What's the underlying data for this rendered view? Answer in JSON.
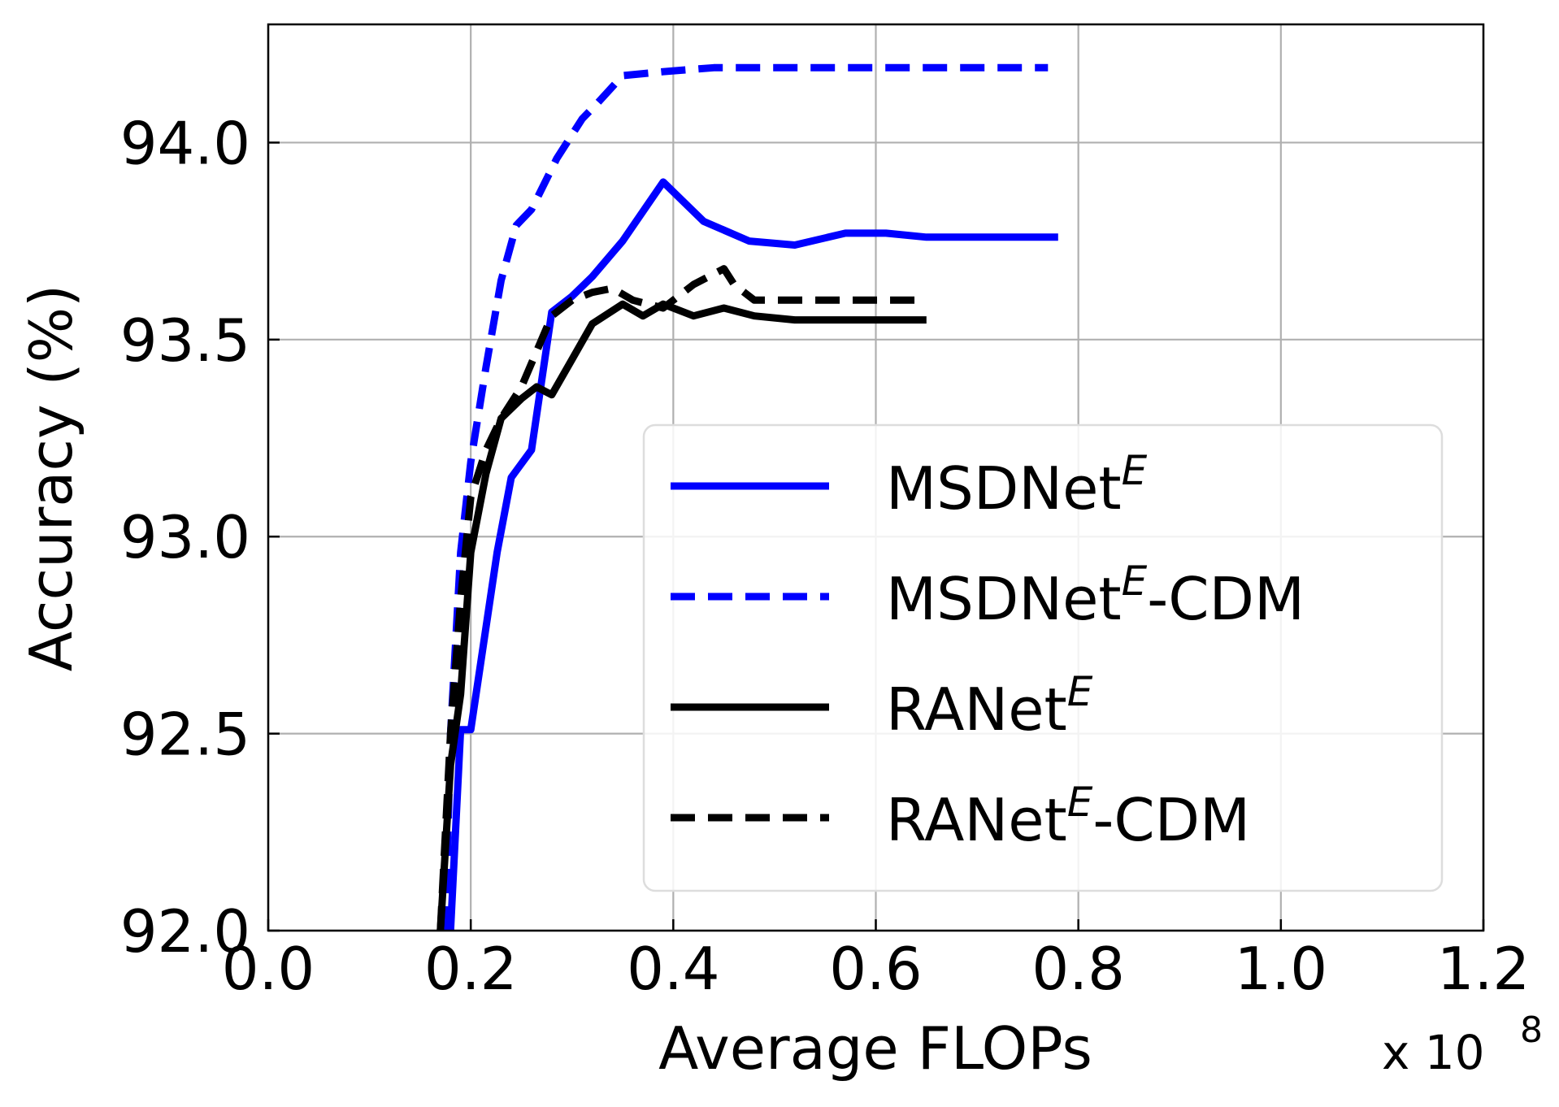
{
  "chart_data": {
    "type": "line",
    "title": "",
    "xlabel": "Average FLOPs",
    "ylabel": "Accuracy (%)",
    "x_multiplier_text": "x 10",
    "x_multiplier_exponent": "8",
    "xlim": [
      0.0,
      1.2
    ],
    "ylim": [
      92.0,
      94.3
    ],
    "xticks": [
      "0.0",
      "0.2",
      "0.4",
      "0.6",
      "0.8",
      "1.0",
      "1.2"
    ],
    "yticks": [
      "92.0",
      "92.5",
      "93.0",
      "93.5",
      "94.0"
    ],
    "grid": true,
    "legend_position": "lower-right",
    "series": [
      {
        "name": "MSDNet",
        "name_sup": "E",
        "name_suffix": "",
        "color": "#0000ff",
        "dash": "solid",
        "x": [
          0.18,
          0.19,
          0.2,
          0.226,
          0.24,
          0.26,
          0.28,
          0.3,
          0.32,
          0.35,
          0.39,
          0.43,
          0.475,
          0.52,
          0.57,
          0.61,
          0.65,
          0.7,
          0.78
        ],
        "y": [
          92.0,
          92.51,
          92.51,
          92.96,
          93.15,
          93.22,
          93.57,
          93.61,
          93.66,
          93.75,
          93.9,
          93.8,
          93.75,
          93.74,
          93.77,
          93.77,
          93.76,
          93.76,
          93.76
        ]
      },
      {
        "name": "MSDNet",
        "name_sup": "E",
        "name_suffix": "-CDM",
        "color": "#0000ff",
        "dash": "dashed",
        "x": [
          0.175,
          0.18,
          0.19,
          0.2,
          0.215,
          0.23,
          0.245,
          0.26,
          0.285,
          0.31,
          0.325,
          0.35,
          0.39,
          0.44,
          0.52,
          0.6,
          0.7,
          0.77
        ],
        "y": [
          92.0,
          92.5,
          92.96,
          93.19,
          93.43,
          93.65,
          93.79,
          93.83,
          93.96,
          94.06,
          94.1,
          94.17,
          94.18,
          94.19,
          94.19,
          94.19,
          94.19,
          94.19
        ]
      },
      {
        "name": "RANet",
        "name_sup": "E",
        "name_suffix": "",
        "color": "#000000",
        "dash": "solid",
        "x": [
          0.17,
          0.18,
          0.19,
          0.2,
          0.215,
          0.23,
          0.25,
          0.265,
          0.28,
          0.3,
          0.32,
          0.35,
          0.37,
          0.39,
          0.42,
          0.45,
          0.48,
          0.52,
          0.57,
          0.6,
          0.65
        ],
        "y": [
          92.0,
          92.42,
          92.6,
          92.96,
          93.16,
          93.3,
          93.35,
          93.38,
          93.36,
          93.45,
          93.54,
          93.59,
          93.56,
          93.59,
          93.56,
          93.58,
          93.56,
          93.55,
          93.55,
          93.55,
          93.55
        ]
      },
      {
        "name": "RANet",
        "name_sup": "E",
        "name_suffix": "-CDM",
        "color": "#000000",
        "dash": "dashed",
        "x": [
          0.17,
          0.18,
          0.19,
          0.2,
          0.215,
          0.23,
          0.25,
          0.265,
          0.28,
          0.3,
          0.32,
          0.34,
          0.36,
          0.39,
          0.42,
          0.45,
          0.46,
          0.48,
          0.52,
          0.56,
          0.6,
          0.64
        ],
        "y": [
          92.0,
          92.5,
          92.84,
          93.1,
          93.22,
          93.3,
          93.38,
          93.47,
          93.56,
          93.6,
          93.62,
          93.63,
          93.6,
          93.58,
          93.64,
          93.68,
          93.64,
          93.6,
          93.6,
          93.6,
          93.6,
          93.6
        ]
      }
    ]
  }
}
